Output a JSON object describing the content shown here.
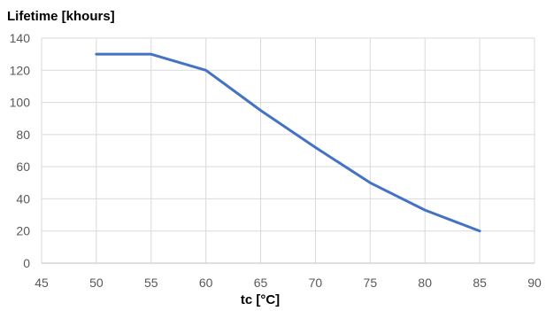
{
  "chart_data": {
    "type": "line",
    "title": "",
    "ylabel": "Lifetime [khours]",
    "xlabel": "tc [°C]",
    "xlim": [
      45,
      90
    ],
    "ylim": [
      0,
      140
    ],
    "x_ticks": [
      45,
      50,
      55,
      60,
      65,
      70,
      75,
      80,
      85,
      90
    ],
    "y_ticks": [
      0,
      20,
      40,
      60,
      80,
      100,
      120,
      140
    ],
    "grid": true,
    "legend": "none",
    "series": [
      {
        "color": "#4472c4",
        "x": [
          50,
          55,
          60,
          65,
          70,
          75,
          80,
          85
        ],
        "y": [
          130,
          130,
          120,
          95,
          72,
          50,
          33,
          20
        ]
      }
    ]
  }
}
